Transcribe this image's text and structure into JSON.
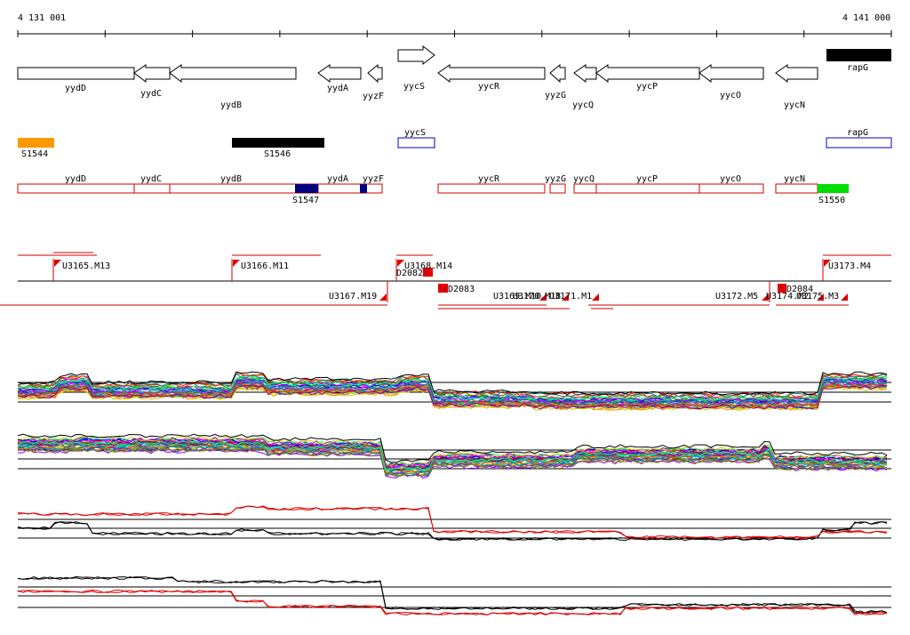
{
  "ruler": {
    "start": "4 131 001",
    "end": "4 141 000"
  },
  "genes": [
    {
      "name": "yydD",
      "dir": "none"
    },
    {
      "name": "yydC",
      "dir": "left"
    },
    {
      "name": "yydB",
      "dir": "left"
    },
    {
      "name": "yydA",
      "dir": "left"
    },
    {
      "name": "yyzF",
      "dir": "left"
    },
    {
      "name": "yycS",
      "dir": "right"
    },
    {
      "name": "yycR",
      "dir": "left"
    },
    {
      "name": "yyzG",
      "dir": "left"
    },
    {
      "name": "yycQ",
      "dir": "left"
    },
    {
      "name": "yycP",
      "dir": "left"
    },
    {
      "name": "yycO",
      "dir": "left"
    },
    {
      "name": "yycN",
      "dir": "left"
    },
    {
      "name": "rapG",
      "dir": "none"
    }
  ],
  "segments": [
    {
      "name": "S1544",
      "color": "#ff9900"
    },
    {
      "name": "S1546",
      "color": "#000000"
    },
    {
      "name": "yycS",
      "color": "#0000cc"
    },
    {
      "name": "rapG",
      "color": "#0000cc"
    }
  ],
  "annotation_boxes": [
    {
      "name": "yydD"
    },
    {
      "name": "yydC"
    },
    {
      "name": "yydB"
    },
    {
      "name": "yydA"
    },
    {
      "name": "yyzF"
    },
    {
      "name": "yycR"
    },
    {
      "name": "yyzG"
    },
    {
      "name": "yycQ"
    },
    {
      "name": "yycP"
    },
    {
      "name": "yycO"
    },
    {
      "name": "yycN"
    }
  ],
  "markers": [
    {
      "name": "S1547",
      "color": "#000080"
    },
    {
      "name": "S1550",
      "color": "#00dd00"
    }
  ],
  "transcripts": [
    {
      "label": "U3165.M13"
    },
    {
      "label": "U3166.M11"
    },
    {
      "label": "U3168.M14"
    },
    {
      "label": "D2082"
    },
    {
      "label": "U3173.M4"
    },
    {
      "label": "U3167.M19"
    },
    {
      "label": "D2083"
    },
    {
      "label": "U3169.M10"
    },
    {
      "label": "U3170.M18"
    },
    {
      "label": "U3171.M1"
    },
    {
      "label": "U3172.M5"
    },
    {
      "label": "D2084"
    },
    {
      "label": "U3174.M2"
    },
    {
      "label": "U3175.M3"
    }
  ],
  "colors": {
    "annotation": "#cc0000",
    "segment_outline": "#0000cc",
    "expression_red": "#dd0000"
  }
}
